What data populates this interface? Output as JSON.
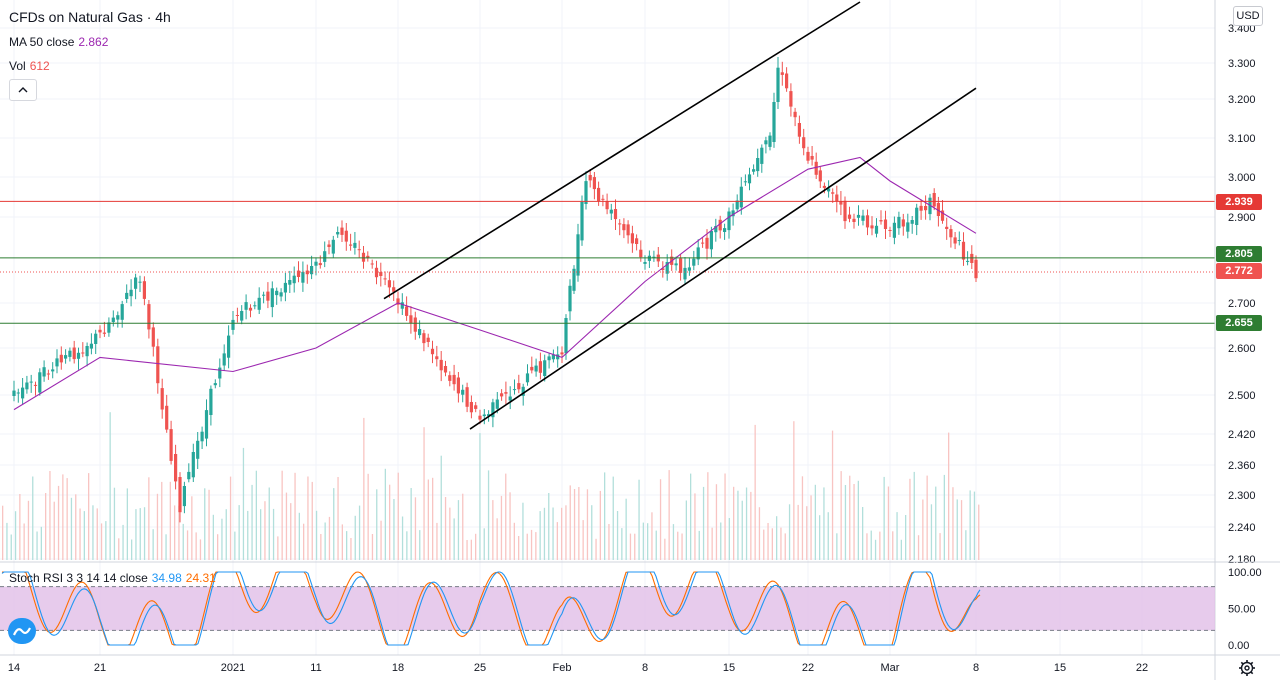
{
  "legend": {
    "title": "CFDs on Natural Gas · 4h",
    "ma_label": "MA 50 close",
    "ma_value": "2.862",
    "vol_label": "Vol",
    "vol_value": "612"
  },
  "currency": "USD",
  "price_tags": {
    "resistance": "2.939",
    "upper_support": "2.805",
    "last_price": "2.772",
    "lower_support": "2.655"
  },
  "stoch": {
    "label": "Stoch RSI 3 3 14 14 close",
    "k_value": "34.98",
    "d_value": "24.31",
    "ticks": [
      "100.00",
      "50.00",
      "0.00"
    ]
  },
  "colors": {
    "up": "#26a69a",
    "down": "#ef5350",
    "ma": "#9c27b0",
    "k_line": "#2196f3",
    "d_line": "#ff6d00",
    "stoch_band": "#e1bee7",
    "resistance_line": "#e53935",
    "support_line": "#2e7d32",
    "trend_line": "#000000"
  },
  "chart_data": {
    "type": "line",
    "title": "CFDs on Natural Gas · 4h",
    "price_axis": {
      "ticks": [
        "3.400",
        "3.300",
        "3.200",
        "3.100",
        "3.000",
        "2.900",
        "2.700",
        "2.600",
        "2.500",
        "2.420",
        "2.360",
        "2.300",
        "2.240",
        "2.180"
      ],
      "range": [
        2.18,
        3.42
      ]
    },
    "time_axis": {
      "ticks": [
        "14",
        "21",
        "2021",
        "11",
        "18",
        "25",
        "Feb",
        "8",
        "15",
        "22",
        "Mar",
        "8",
        "15",
        "22"
      ]
    },
    "series": [
      {
        "name": "CFDs on Natural Gas",
        "x": [
          "Dec 14",
          "Dec 21",
          "Dec 24",
          "Dec 28",
          "Jan 4",
          "Jan 11",
          "Jan 13",
          "Jan 18",
          "Jan 25",
          "Feb 1",
          "Feb 3",
          "Feb 8",
          "Feb 11",
          "Feb 15",
          "Feb 18",
          "Feb 19",
          "Feb 22",
          "Feb 25",
          "Mar 1",
          "Mar 4",
          "Mar 8"
        ],
        "y": [
          2.5,
          2.63,
          2.76,
          2.28,
          2.67,
          2.78,
          2.87,
          2.7,
          2.45,
          2.6,
          2.99,
          2.8,
          2.78,
          2.9,
          3.1,
          3.29,
          3.05,
          2.9,
          2.87,
          2.94,
          2.772
        ]
      },
      {
        "name": "MA 50 close",
        "x": [
          "Dec 14",
          "Dec 21",
          "Jan 4",
          "Jan 11",
          "Jan 18",
          "Jan 25",
          "Feb 1",
          "Feb 8",
          "Feb 15",
          "Feb 22",
          "Feb 26",
          "Mar 1",
          "Mar 8"
        ],
        "y": [
          2.47,
          2.58,
          2.55,
          2.6,
          2.7,
          2.64,
          2.58,
          2.75,
          2.9,
          3.02,
          3.05,
          2.99,
          2.862
        ]
      },
      {
        "name": "Stoch RSI K",
        "x": [
          "Dec 14",
          "Dec 21",
          "Dec 28",
          "Jan 4",
          "Jan 11",
          "Jan 18",
          "Jan 25",
          "Feb 1",
          "Feb 8",
          "Feb 15",
          "Feb 22",
          "Mar 1",
          "Mar 4",
          "Mar 8"
        ],
        "y": [
          90,
          20,
          5,
          95,
          85,
          20,
          70,
          10,
          95,
          70,
          15,
          5,
          95,
          34.98
        ]
      },
      {
        "name": "Stoch RSI D",
        "x": [
          "Dec 14",
          "Dec 21",
          "Dec 28",
          "Jan 4",
          "Jan 11",
          "Jan 18",
          "Jan 25",
          "Feb 1",
          "Feb 8",
          "Feb 15",
          "Feb 22",
          "Mar 1",
          "Mar 4",
          "Mar 8"
        ],
        "y": [
          85,
          30,
          8,
          90,
          88,
          25,
          65,
          15,
          90,
          72,
          20,
          8,
          92,
          24.31
        ]
      }
    ],
    "horizontal_levels": [
      2.939,
      2.805,
      2.772,
      2.655
    ],
    "stoch_band": [
      20,
      80
    ],
    "channel": {
      "upper": [
        [
          "Jan 17",
          2.71
        ],
        [
          "Feb 19",
          3.42
        ]
      ],
      "lower": [
        [
          "Jan 24",
          2.43
        ],
        [
          "Mar 9",
          3.23
        ]
      ]
    }
  }
}
